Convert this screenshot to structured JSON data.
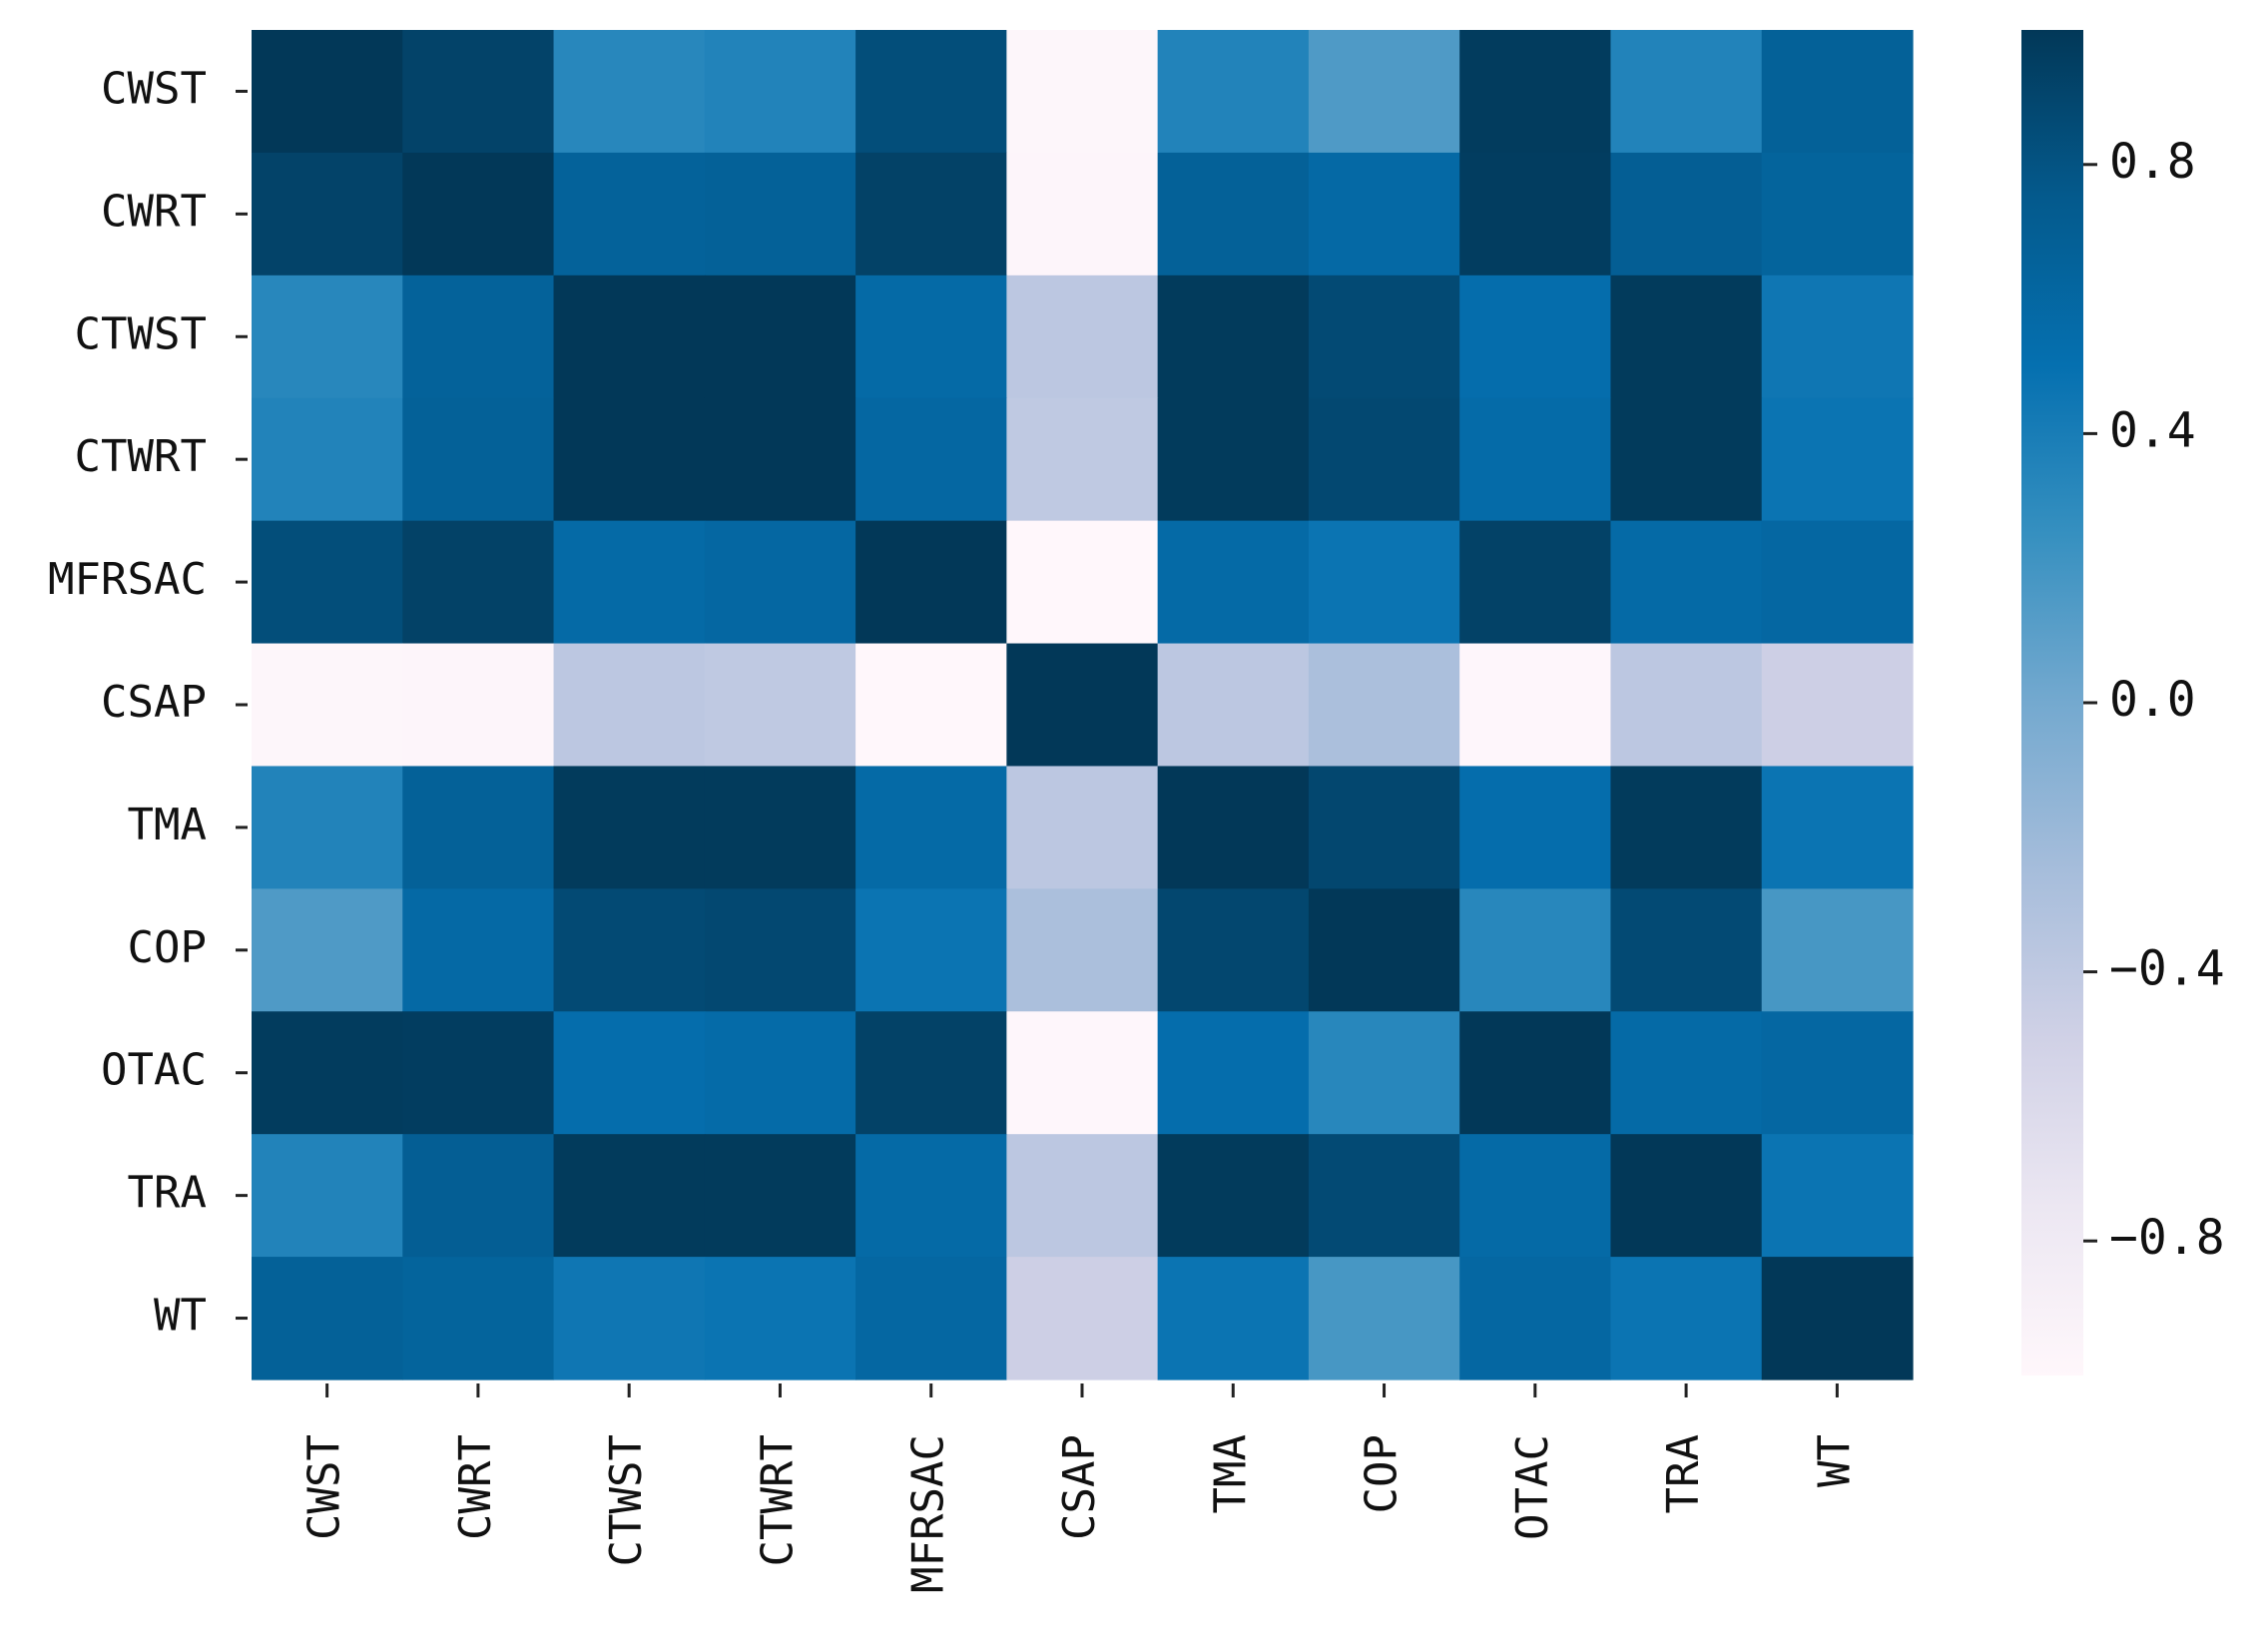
{
  "chart_data": {
    "type": "heatmap",
    "title": "",
    "xlabel": "",
    "ylabel": "",
    "rows": [
      "CWST",
      "CWRT",
      "CTWST",
      "CTWRT",
      "MFRSAC",
      "CSAP",
      "TMA",
      "COP",
      "OTAC",
      "TRA",
      "WT"
    ],
    "columns": [
      "CWST",
      "CWRT",
      "CTWST",
      "CTWRT",
      "MFRSAC",
      "CSAP",
      "TMA",
      "COP",
      "OTAC",
      "TRA",
      "WT"
    ],
    "values": [
      [
        1.0,
        0.92,
        0.32,
        0.35,
        0.84,
        -0.98,
        0.35,
        0.15,
        0.97,
        0.35,
        0.67
      ],
      [
        0.92,
        1.0,
        0.66,
        0.67,
        0.93,
        -0.97,
        0.67,
        0.58,
        0.96,
        0.7,
        0.64
      ],
      [
        0.32,
        0.66,
        1.0,
        1.0,
        0.57,
        -0.38,
        0.98,
        0.87,
        0.53,
        0.98,
        0.45
      ],
      [
        0.35,
        0.67,
        1.0,
        1.0,
        0.6,
        -0.4,
        0.98,
        0.88,
        0.56,
        0.98,
        0.47
      ],
      [
        0.84,
        0.93,
        0.57,
        0.6,
        1.0,
        -1.0,
        0.57,
        0.47,
        0.93,
        0.57,
        0.6
      ],
      [
        -0.98,
        -0.97,
        -0.38,
        -0.4,
        -1.0,
        1.0,
        -0.38,
        -0.28,
        -0.99,
        -0.38,
        -0.48
      ],
      [
        0.35,
        0.67,
        0.98,
        0.98,
        0.57,
        -0.38,
        1.0,
        0.89,
        0.53,
        0.98,
        0.47
      ],
      [
        0.15,
        0.58,
        0.87,
        0.88,
        0.47,
        -0.28,
        0.89,
        1.0,
        0.32,
        0.87,
        0.18
      ],
      [
        0.97,
        0.96,
        0.53,
        0.56,
        0.93,
        -0.99,
        0.53,
        0.32,
        1.0,
        0.57,
        0.6
      ],
      [
        0.35,
        0.7,
        0.98,
        0.98,
        0.57,
        -0.38,
        0.98,
        0.87,
        0.57,
        1.0,
        0.47
      ],
      [
        0.67,
        0.64,
        0.45,
        0.47,
        0.6,
        -0.48,
        0.47,
        0.18,
        0.6,
        0.47,
        1.0
      ]
    ],
    "colorbar": {
      "vmin": -1.0,
      "vmax": 1.0,
      "ticks": [
        "0.8",
        "0.4",
        "0.0",
        "−0.4",
        "−0.8"
      ],
      "tick_values": [
        0.8,
        0.4,
        0.0,
        -0.4,
        -0.8
      ],
      "colors": [
        "#fff7fb",
        "#ece7f2",
        "#d0d1e6",
        "#a6bddb",
        "#74a9cf",
        "#3690c0",
        "#0570b0",
        "#045a8d",
        "#023858"
      ]
    },
    "grid": false,
    "legend": "colorbar-right"
  }
}
